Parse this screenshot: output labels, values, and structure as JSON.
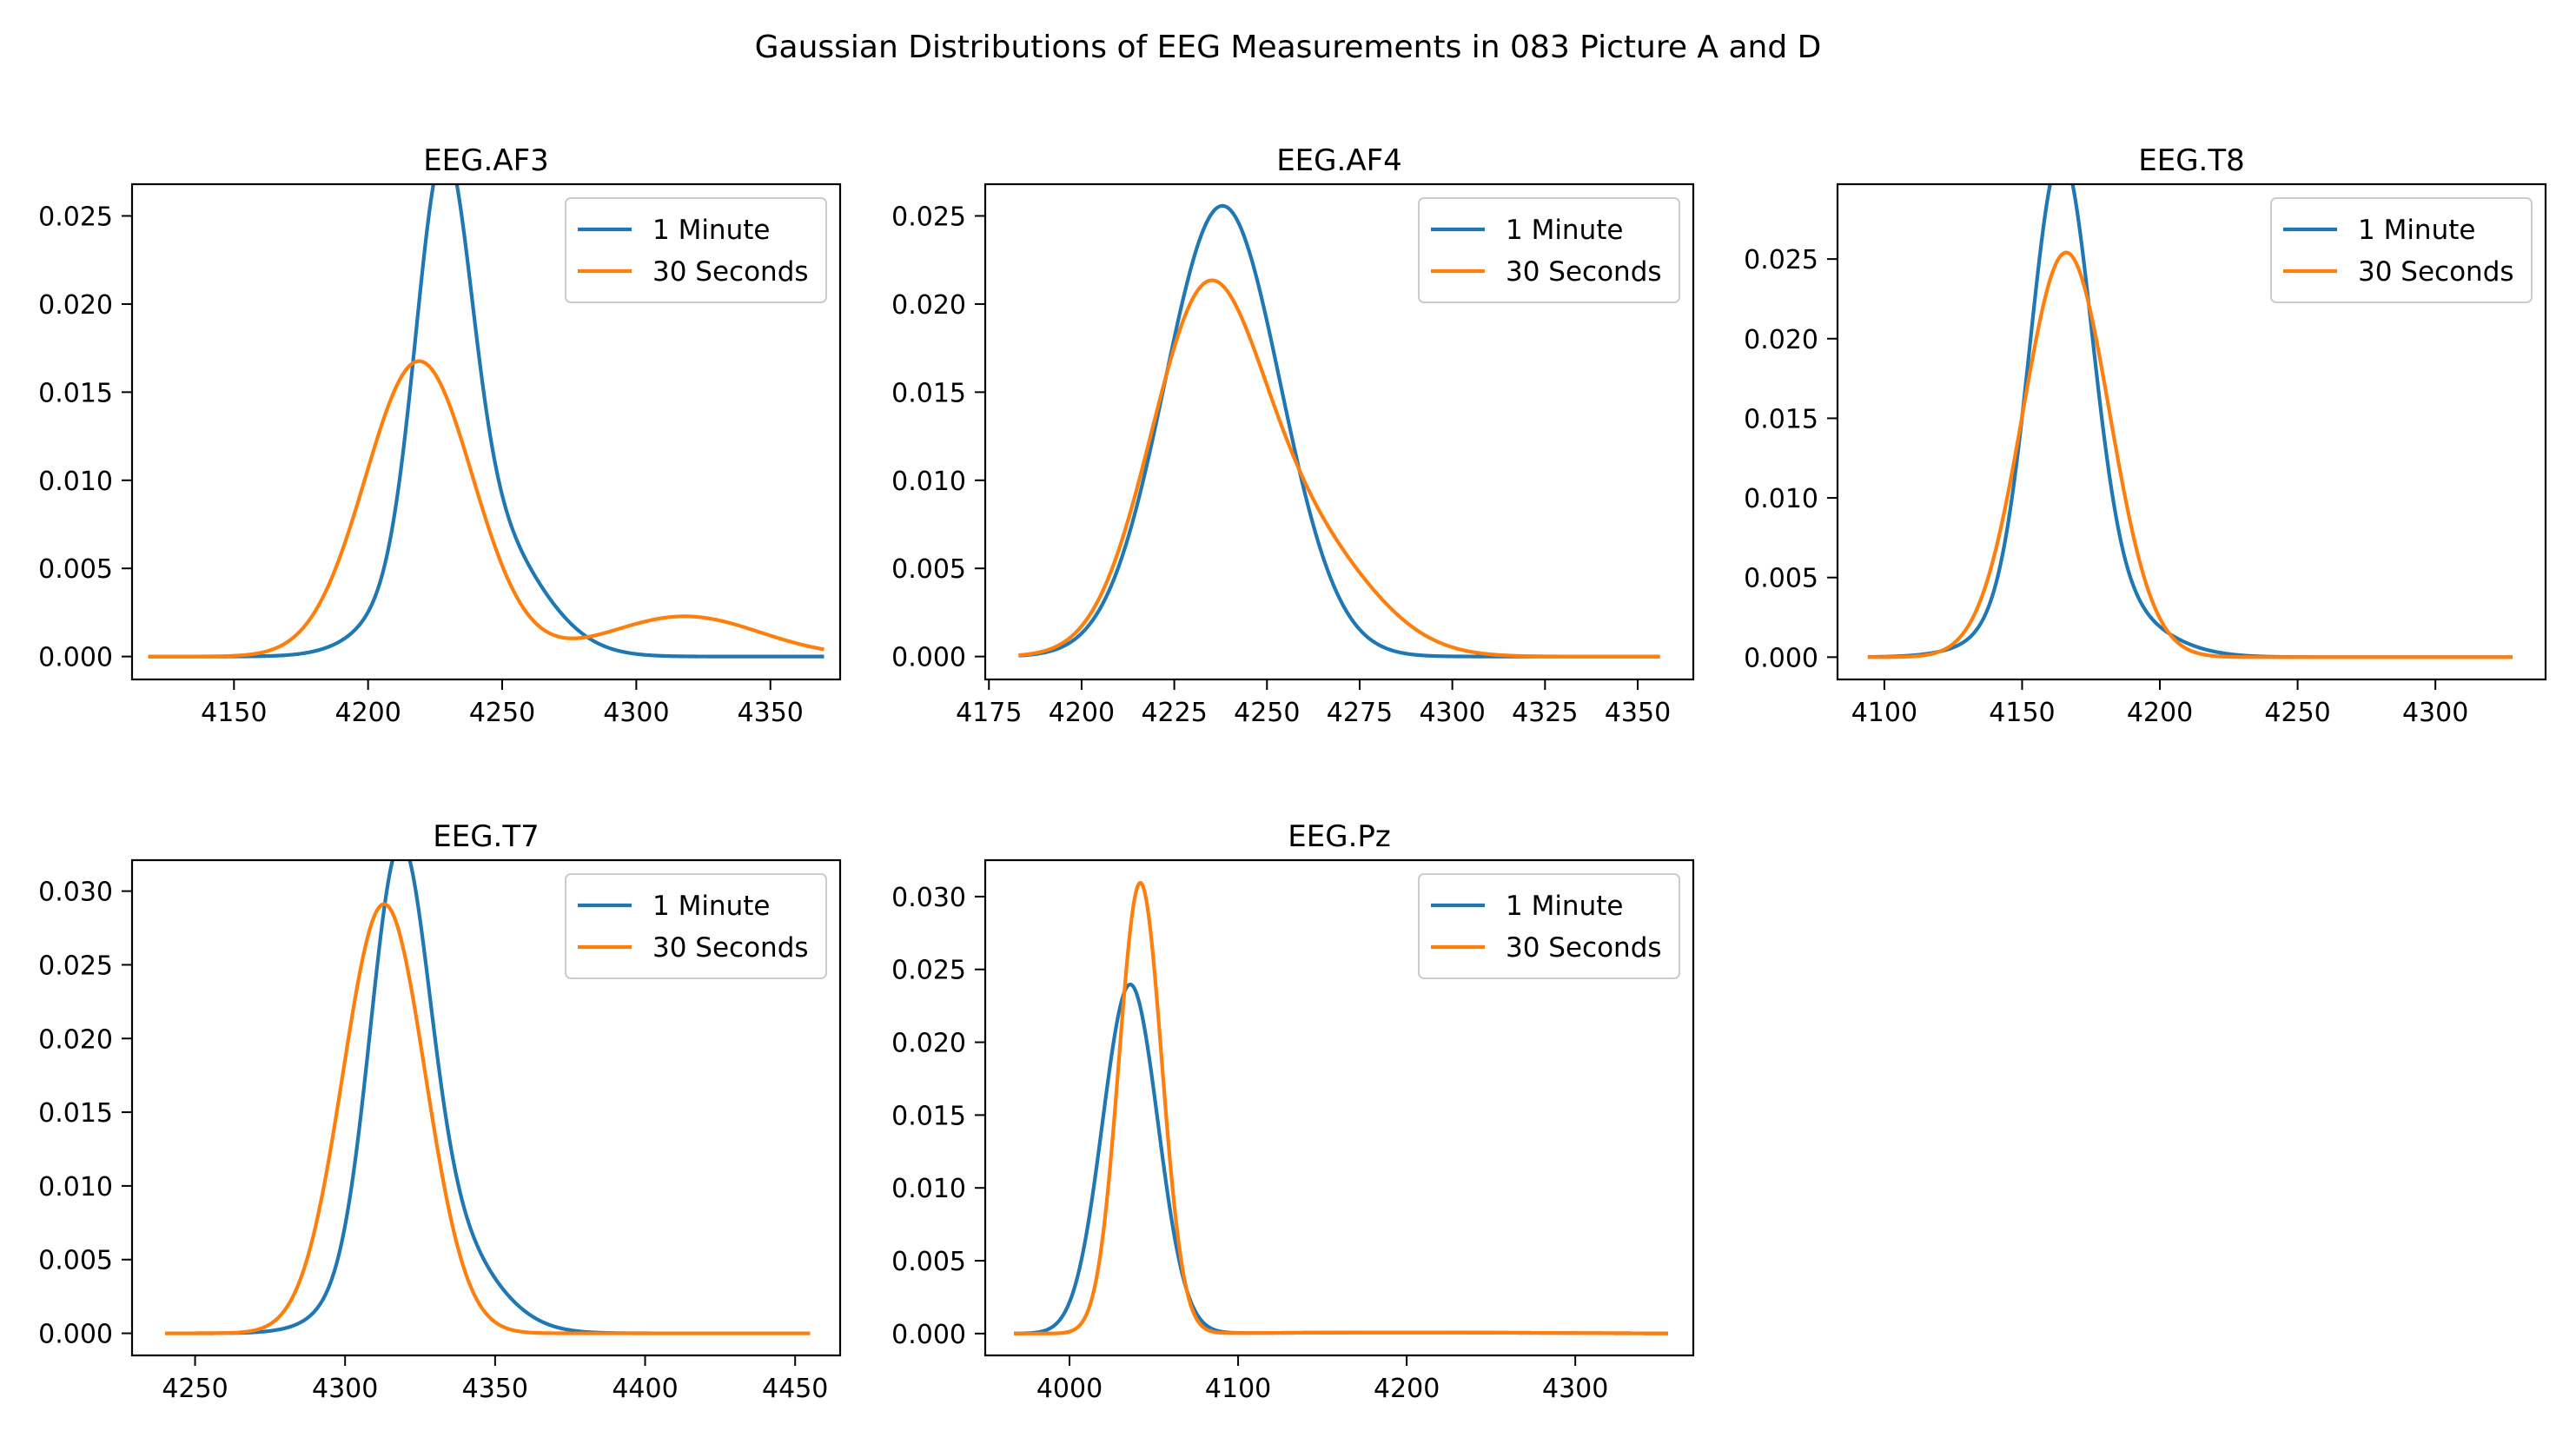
{
  "title": "Gaussian Distributions of EEG Measurements in 083 Picture A and D",
  "colors": {
    "series_1": "#1f77b4",
    "series_2": "#ff7f0e"
  },
  "legend_labels": [
    "1 Minute",
    "30 Seconds"
  ],
  "chart_data": [
    {
      "type": "line",
      "title": "EEG.AF3",
      "xlim": [
        4112,
        4376
      ],
      "ylim": [
        -0.0013,
        0.0268
      ],
      "xticks": [
        4150,
        4200,
        4250,
        4300,
        4350
      ],
      "yticks": [
        0.0,
        0.005,
        0.01,
        0.015,
        0.02,
        0.025
      ],
      "x_range": [
        4118,
        4370
      ],
      "legend": "top-right",
      "series": [
        {
          "name": "1 Minute",
          "components": [
            {
              "weight": 0.52,
              "mean": 4228,
              "sd": 10
            },
            {
              "weight": 0.48,
              "mean": 4237,
              "sd": 22
            }
          ]
        },
        {
          "name": "30 Seconds",
          "components": [
            {
              "weight": 0.84,
              "mean": 4219,
              "sd": 20
            },
            {
              "weight": 0.16,
              "mean": 4318,
              "sd": 28
            }
          ]
        }
      ]
    },
    {
      "type": "line",
      "title": "EEG.AF4",
      "xlim": [
        4174,
        4365
      ],
      "ylim": [
        -0.0013,
        0.0268
      ],
      "xticks": [
        4175,
        4200,
        4225,
        4250,
        4275,
        4300,
        4325,
        4350
      ],
      "yticks": [
        0.0,
        0.005,
        0.01,
        0.015,
        0.02,
        0.025
      ],
      "x_range": [
        4183,
        4356
      ],
      "legend": "top-right",
      "series": [
        {
          "name": "1 Minute",
          "components": [
            {
              "weight": 1.0,
              "mean": 4238,
              "sd": 15.6
            }
          ]
        },
        {
          "name": "30 Seconds",
          "components": [
            {
              "weight": 0.72,
              "mean": 4233,
              "sd": 15
            },
            {
              "weight": 0.28,
              "mean": 4260,
              "sd": 18
            }
          ]
        }
      ]
    },
    {
      "type": "line",
      "title": "EEG.T8",
      "xlim": [
        4083,
        4340
      ],
      "ylim": [
        -0.0014,
        0.0297
      ],
      "xticks": [
        4100,
        4150,
        4200,
        4250,
        4300
      ],
      "yticks": [
        0.0,
        0.005,
        0.01,
        0.015,
        0.02,
        0.025
      ],
      "x_range": [
        4094,
        4328
      ],
      "legend": "top-right",
      "series": [
        {
          "name": "1 Minute",
          "components": [
            {
              "weight": 0.75,
              "mean": 4164,
              "sd": 11
            },
            {
              "weight": 0.25,
              "mean": 4170,
              "sd": 22
            }
          ]
        },
        {
          "name": "30 Seconds",
          "components": [
            {
              "weight": 1.0,
              "mean": 4166,
              "sd": 15.7
            }
          ]
        }
      ]
    },
    {
      "type": "line",
      "title": "EEG.T7",
      "xlim": [
        4229,
        4465
      ],
      "ylim": [
        -0.0015,
        0.0321
      ],
      "xticks": [
        4250,
        4300,
        4350,
        4400,
        4450
      ],
      "yticks": [
        0.0,
        0.005,
        0.01,
        0.015,
        0.02,
        0.025,
        0.03
      ],
      "x_range": [
        4240,
        4455
      ],
      "legend": "top-right",
      "series": [
        {
          "name": "1 Minute",
          "components": [
            {
              "weight": 0.6,
              "mean": 4318,
              "sd": 9.5
            },
            {
              "weight": 0.4,
              "mean": 4326,
              "sd": 18
            }
          ]
        },
        {
          "name": "30 Seconds",
          "components": [
            {
              "weight": 1.0,
              "mean": 4313,
              "sd": 13.7
            }
          ]
        }
      ]
    },
    {
      "type": "line",
      "title": "EEG.Pz",
      "xlim": [
        3950,
        4370
      ],
      "ylim": [
        -0.0015,
        0.0325
      ],
      "xticks": [
        4000,
        4100,
        4200,
        4300
      ],
      "yticks": [
        0.0,
        0.005,
        0.01,
        0.015,
        0.02,
        0.025,
        0.03
      ],
      "x_range": [
        3967,
        4355
      ],
      "legend": "top-right",
      "series": [
        {
          "name": "1 Minute",
          "components": [
            {
              "weight": 0.985,
              "mean": 4036,
              "sd": 16.4
            },
            {
              "weight": 0.015,
              "mean": 4200,
              "sd": 80
            }
          ]
        },
        {
          "name": "30 Seconds",
          "components": [
            {
              "weight": 0.985,
              "mean": 4042,
              "sd": 12.7
            },
            {
              "weight": 0.015,
              "mean": 4200,
              "sd": 80
            }
          ]
        }
      ]
    }
  ]
}
